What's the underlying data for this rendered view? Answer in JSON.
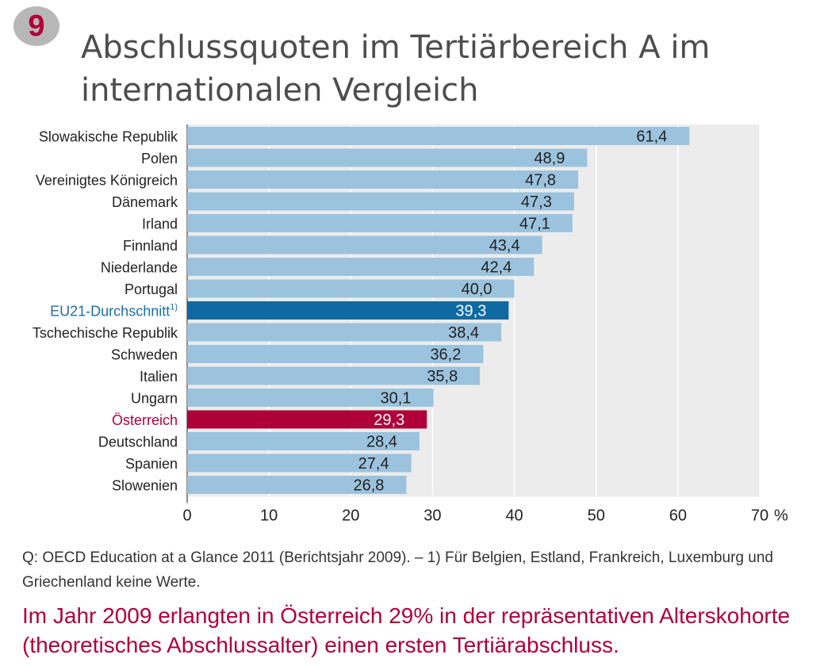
{
  "figure": {
    "number": "9",
    "title": "Abschlussquoten im Tertiärbereich A im internationalen Vergleich",
    "footnote": "Q: OECD Education at a Glance 2011 (Berichtsjahr 2009). – 1) Für Belgien, Estland, Frankreich, Luxemburg und Griechenland keine Werte.",
    "summary": "Im Jahr 2009 erlangten in Österreich 29% in der repräsentativen Alterskohorte (theoretisches Abschlussalter) einen ersten Tertiärabschluss."
  },
  "colors": {
    "bar": "#9cc3de",
    "eu_bar": "#0f6aa3",
    "austria_bar": "#b0003a",
    "plot_bg": "#ececec",
    "grid": "#ffffff",
    "eu_label": "#1a6ea8",
    "austria_label": "#b0003a",
    "text": "#222222"
  },
  "chart_data": {
    "type": "bar",
    "orientation": "horizontal",
    "categories": [
      "Slowakische Republik",
      "Polen",
      "Vereinigtes Königreich",
      "Dänemark",
      "Irland",
      "Finnland",
      "Niederlande",
      "Portugal",
      "EU21-Durchschnitt",
      "Tschechische Republik",
      "Schweden",
      "Italien",
      "Ungarn",
      "Österreich",
      "Deutschland",
      "Spanien",
      "Slowenien"
    ],
    "values": [
      61.4,
      48.9,
      47.8,
      47.3,
      47.1,
      43.4,
      42.4,
      40.0,
      39.3,
      38.4,
      36.2,
      35.8,
      30.1,
      29.3,
      28.4,
      27.4,
      26.8
    ],
    "value_labels": [
      "61,4",
      "48,9",
      "47,8",
      "47,3",
      "47,1",
      "43,4",
      "42,4",
      "40,0",
      "39,3",
      "38,4",
      "36,2",
      "35,8",
      "30,1",
      "29,3",
      "28,4",
      "27,4",
      "26,8"
    ],
    "highlight": {
      "EU21-Durchschnitt": "eu",
      "Österreich": "austria"
    },
    "eu_label_superscript": "1)",
    "xlim": [
      0,
      70
    ],
    "xticks": [
      "0",
      "10",
      "20",
      "30",
      "40",
      "50",
      "60",
      "70"
    ],
    "x_unit": "%",
    "grid": true
  }
}
